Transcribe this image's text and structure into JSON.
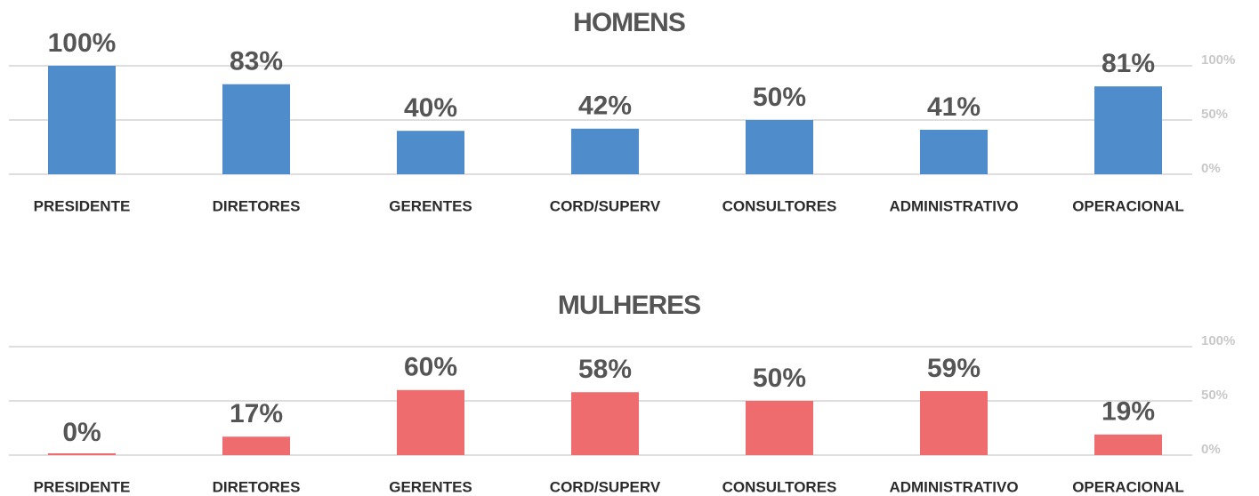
{
  "chart_data": [
    {
      "type": "bar",
      "title": "HOMENS",
      "color": "#4f8ccc",
      "categories": [
        "PRESIDENTE",
        "DIRETORES",
        "GERENTES",
        "CORD/SUPERV",
        "CONSULTORES",
        "ADMINISTRATIVO",
        "OPERACIONAL"
      ],
      "values": [
        100,
        83,
        40,
        42,
        50,
        41,
        81
      ],
      "value_labels": [
        "100%",
        "83%",
        "40%",
        "42%",
        "50%",
        "41%",
        "81%"
      ],
      "ylim": [
        0,
        100
      ],
      "yticks": [
        {
          "value": 0,
          "label": "0%"
        },
        {
          "value": 50,
          "label": "50%"
        },
        {
          "value": 100,
          "label": "100%"
        }
      ],
      "grid": true
    },
    {
      "type": "bar",
      "title": "MULHERES",
      "color": "#ee6b6e",
      "categories": [
        "PRESIDENTE",
        "DIRETORES",
        "GERENTES",
        "CORD/SUPERV",
        "CONSULTORES",
        "ADMINISTRATIVO",
        "OPERACIONAL"
      ],
      "values": [
        0,
        17,
        60,
        58,
        50,
        59,
        19
      ],
      "value_labels": [
        "0%",
        "17%",
        "60%",
        "58%",
        "50%",
        "59%",
        "19%"
      ],
      "ylim": [
        0,
        100
      ],
      "yticks": [
        {
          "value": 0,
          "label": "0%"
        },
        {
          "value": 50,
          "label": "50%"
        },
        {
          "value": 100,
          "label": "100%"
        }
      ],
      "grid": true
    }
  ]
}
